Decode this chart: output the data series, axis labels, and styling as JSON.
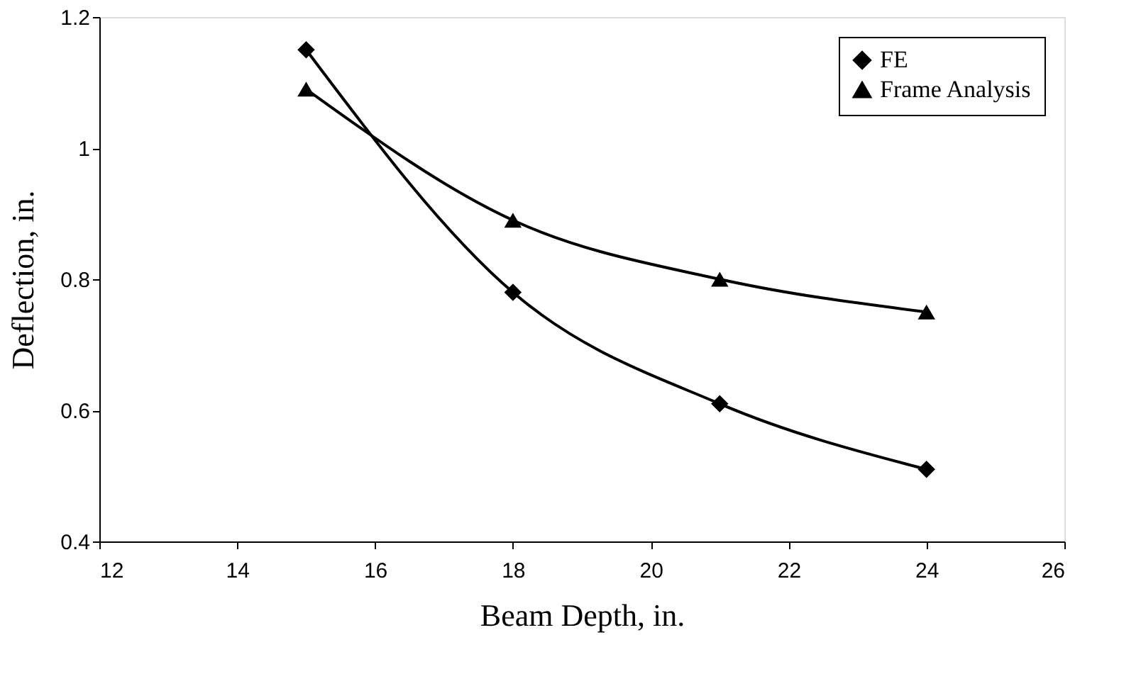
{
  "chart_data": {
    "type": "line",
    "xlabel": "Beam Depth, in.",
    "ylabel": "Deflection, in.",
    "x": [
      15,
      18,
      21,
      24
    ],
    "series": [
      {
        "name": "FE",
        "color": "#000000",
        "marker": "diamond",
        "values": [
          1.15,
          0.78,
          0.61,
          0.51
        ]
      },
      {
        "name": "Frame Analysis",
        "color": "#000000",
        "marker": "triangle",
        "values": [
          1.09,
          0.89,
          0.8,
          0.75
        ]
      }
    ],
    "xlim": [
      12,
      26
    ],
    "xticks": [
      12,
      14,
      16,
      18,
      20,
      22,
      24,
      26
    ],
    "ylim": [
      0.4,
      1.2
    ],
    "yticks": [
      0.4,
      0.6,
      0.8,
      1,
      1.2
    ],
    "grid": false,
    "legend": "top right",
    "line_style": "solid"
  }
}
